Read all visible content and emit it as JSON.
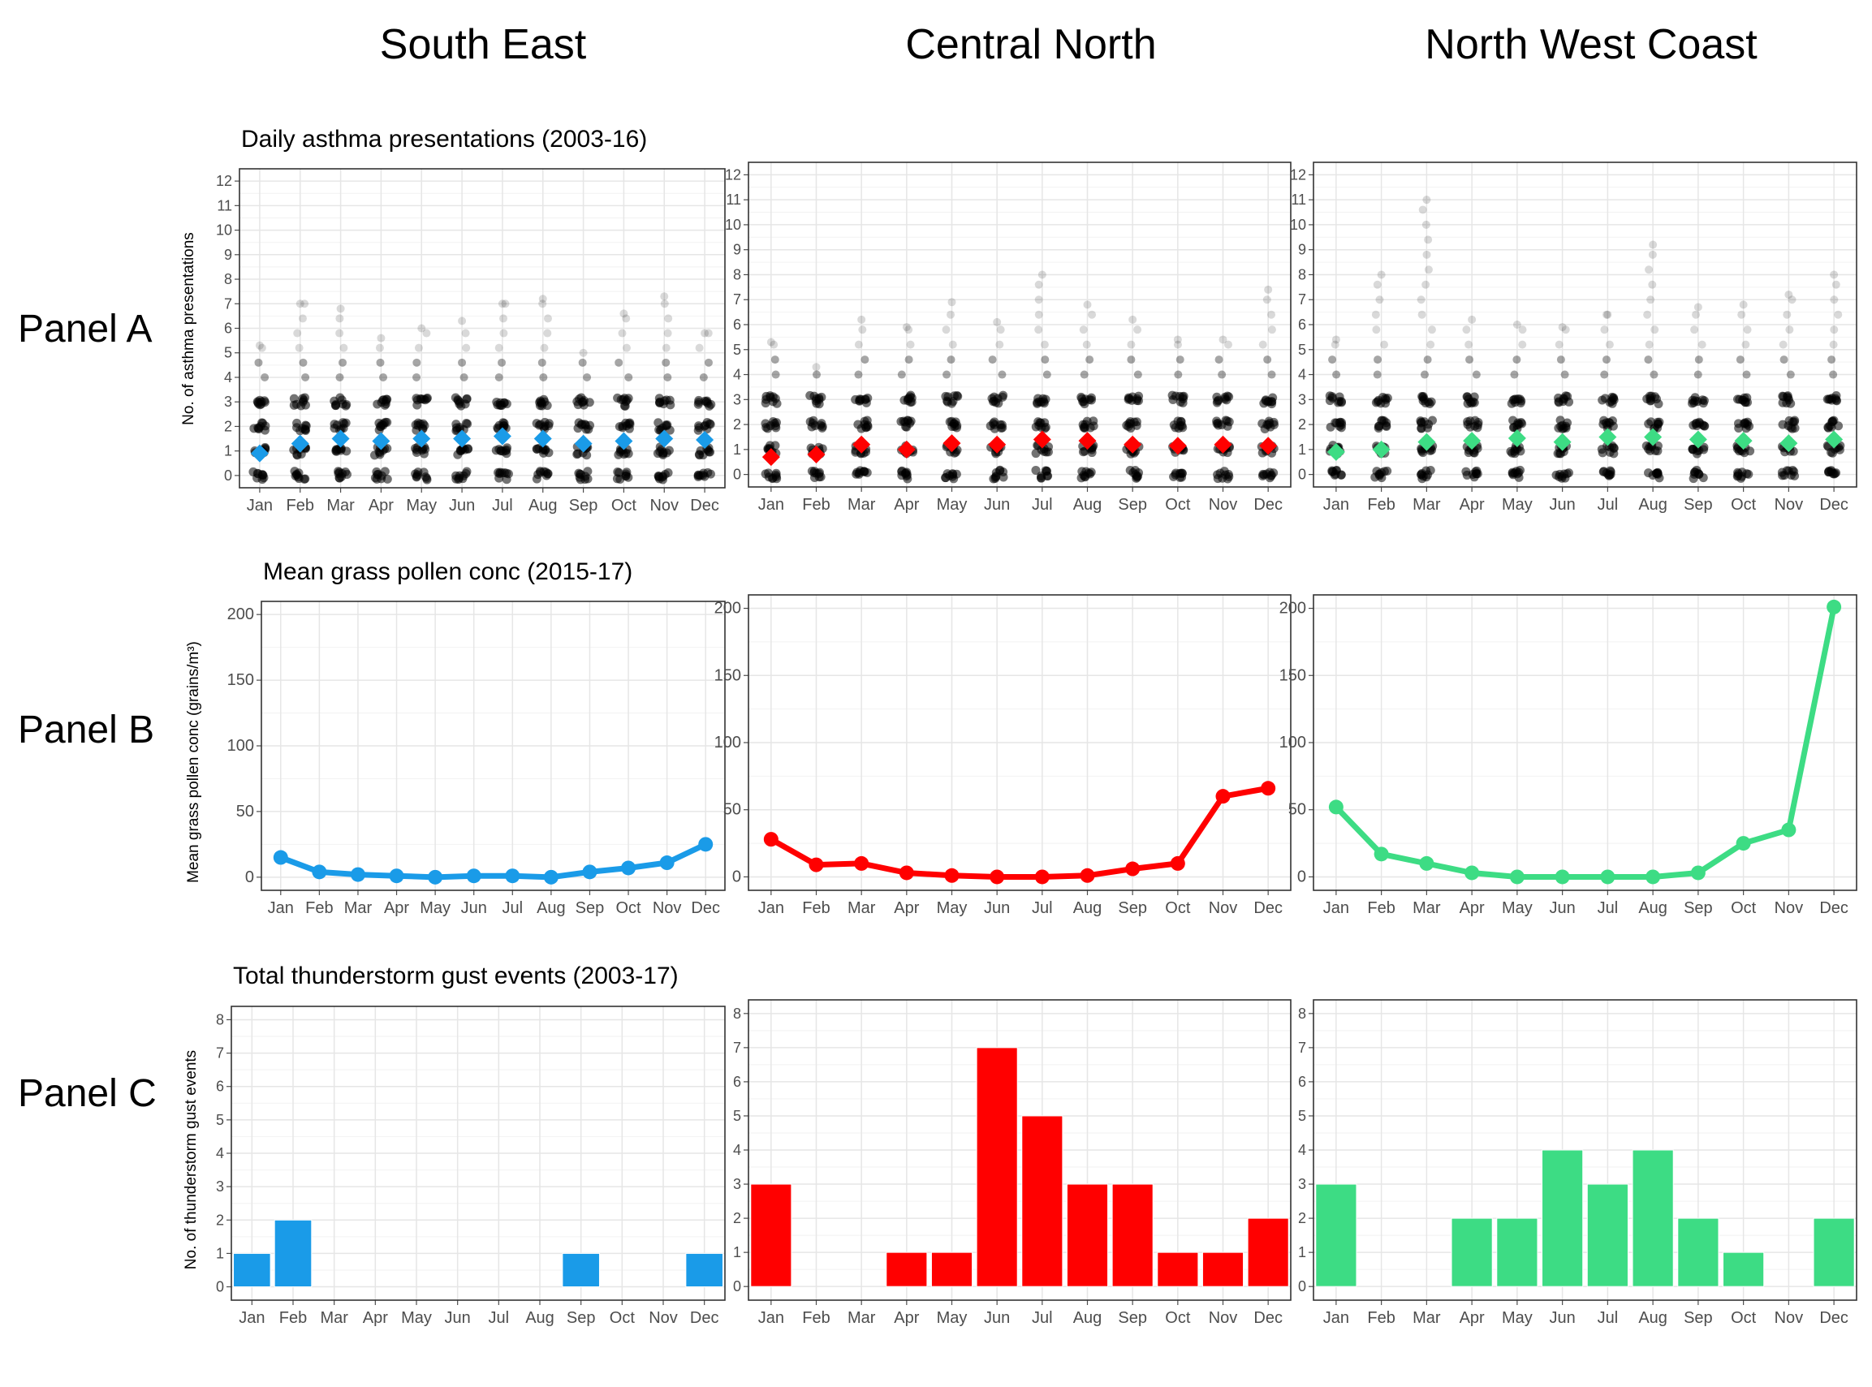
{
  "columns": [
    "South East",
    "Central North",
    "North West Coast"
  ],
  "panels": [
    "Panel A",
    "Panel B",
    "Panel C"
  ],
  "colors": {
    "South East": "#1a9be8",
    "Central North": "#ff0000",
    "North West Coast": "#3ddc84"
  },
  "chart_data": [
    {
      "panel": "A",
      "region": "South East",
      "type": "scatter",
      "title": "Daily asthma presentations (2003-16)",
      "xlabel": "",
      "ylabel": "No. of asthma presentations",
      "categories": [
        "Jan",
        "Feb",
        "Mar",
        "Apr",
        "May",
        "Jun",
        "Jul",
        "Aug",
        "Sep",
        "Oct",
        "Nov",
        "Dec"
      ],
      "ylim": [
        0,
        12
      ],
      "yticks": [
        0,
        1,
        2,
        3,
        4,
        5,
        6,
        7,
        8,
        9,
        10,
        11,
        12
      ],
      "means": [
        0.9,
        1.3,
        1.5,
        1.4,
        1.5,
        1.5,
        1.6,
        1.5,
        1.3,
        1.4,
        1.5,
        1.45
      ],
      "max_values": [
        5.3,
        7.0,
        6.8,
        5.6,
        6.0,
        6.3,
        7.0,
        7.2,
        5.0,
        6.6,
        7.3,
        5.8
      ],
      "grid": true
    },
    {
      "panel": "A",
      "region": "Central North",
      "type": "scatter",
      "title": "",
      "xlabel": "",
      "ylabel": "",
      "categories": [
        "Jan",
        "Feb",
        "Mar",
        "Apr",
        "May",
        "Jun",
        "Jul",
        "Aug",
        "Sep",
        "Oct",
        "Nov",
        "Dec"
      ],
      "ylim": [
        0,
        12
      ],
      "yticks": [
        0,
        1,
        2,
        3,
        4,
        5,
        6,
        7,
        8,
        9,
        10,
        11,
        12
      ],
      "means": [
        0.7,
        0.8,
        1.2,
        1.0,
        1.25,
        1.2,
        1.4,
        1.35,
        1.2,
        1.15,
        1.2,
        1.15
      ],
      "max_values": [
        5.3,
        4.3,
        6.2,
        5.9,
        6.9,
        6.1,
        8.0,
        6.8,
        6.2,
        5.4,
        5.4,
        7.4
      ],
      "grid": true
    },
    {
      "panel": "A",
      "region": "North West Coast",
      "type": "scatter",
      "title": "",
      "xlabel": "",
      "ylabel": "",
      "categories": [
        "Jan",
        "Feb",
        "Mar",
        "Apr",
        "May",
        "Jun",
        "Jul",
        "Aug",
        "Sep",
        "Oct",
        "Nov",
        "Dec"
      ],
      "ylim": [
        0,
        12
      ],
      "yticks": [
        0,
        1,
        2,
        3,
        4,
        5,
        6,
        7,
        8,
        9,
        10,
        11,
        12
      ],
      "means": [
        0.9,
        1.0,
        1.3,
        1.35,
        1.45,
        1.3,
        1.5,
        1.5,
        1.4,
        1.35,
        1.25,
        1.4
      ],
      "max_values": [
        5.4,
        8.0,
        11.0,
        6.2,
        6.0,
        5.9,
        6.4,
        9.2,
        6.7,
        6.8,
        7.2,
        8.0
      ],
      "grid": true
    },
    {
      "panel": "B",
      "region": "South East",
      "type": "line",
      "title": "Mean grass pollen conc (2015-17)",
      "xlabel": "",
      "ylabel": "Mean grass pollen conc (grains/m³)",
      "categories": [
        "Jan",
        "Feb",
        "Mar",
        "Apr",
        "May",
        "Jun",
        "Jul",
        "Aug",
        "Sep",
        "Oct",
        "Nov",
        "Dec"
      ],
      "values": [
        15,
        4,
        2,
        1,
        0,
        1,
        1,
        0,
        4,
        7,
        11,
        25
      ],
      "ylim": [
        -10,
        210
      ],
      "yticks": [
        0,
        50,
        100,
        150,
        200
      ],
      "grid": true
    },
    {
      "panel": "B",
      "region": "Central North",
      "type": "line",
      "title": "",
      "xlabel": "",
      "ylabel": "",
      "categories": [
        "Jan",
        "Feb",
        "Mar",
        "Apr",
        "May",
        "Jun",
        "Jul",
        "Aug",
        "Sep",
        "Oct",
        "Nov",
        "Dec"
      ],
      "values": [
        28,
        9,
        10,
        3,
        1,
        0,
        0,
        1,
        6,
        10,
        60,
        66
      ],
      "ylim": [
        -10,
        210
      ],
      "yticks": [
        0,
        50,
        100,
        150,
        200
      ],
      "grid": true
    },
    {
      "panel": "B",
      "region": "North West Coast",
      "type": "line",
      "title": "",
      "xlabel": "",
      "ylabel": "",
      "categories": [
        "Jan",
        "Feb",
        "Mar",
        "Apr",
        "May",
        "Jun",
        "Jul",
        "Aug",
        "Sep",
        "Oct",
        "Nov",
        "Dec"
      ],
      "values": [
        52,
        17,
        10,
        3,
        0,
        0,
        0,
        0,
        3,
        25,
        35,
        201
      ],
      "ylim": [
        -10,
        210
      ],
      "yticks": [
        0,
        50,
        100,
        150,
        200
      ],
      "grid": true
    },
    {
      "panel": "C",
      "region": "South East",
      "type": "bar",
      "title": "Total thunderstorm gust events (2003-17)",
      "xlabel": "",
      "ylabel": "No. of thunderstorm gust events",
      "categories": [
        "Jan",
        "Feb",
        "Mar",
        "Apr",
        "May",
        "Jun",
        "Jul",
        "Aug",
        "Sep",
        "Oct",
        "Nov",
        "Dec"
      ],
      "values": [
        1,
        2,
        0,
        0,
        0,
        0,
        0,
        0,
        1,
        0,
        0,
        1
      ],
      "ylim": [
        -0.4,
        8.4
      ],
      "yticks": [
        0,
        1,
        2,
        3,
        4,
        5,
        6,
        7,
        8
      ],
      "grid": true
    },
    {
      "panel": "C",
      "region": "Central North",
      "type": "bar",
      "title": "",
      "xlabel": "",
      "ylabel": "",
      "categories": [
        "Jan",
        "Feb",
        "Mar",
        "Apr",
        "May",
        "Jun",
        "Jul",
        "Aug",
        "Sep",
        "Oct",
        "Nov",
        "Dec"
      ],
      "values": [
        3,
        0,
        0,
        1,
        1,
        7,
        5,
        3,
        3,
        1,
        1,
        2
      ],
      "ylim": [
        -0.4,
        8.4
      ],
      "yticks": [
        0,
        1,
        2,
        3,
        4,
        5,
        6,
        7,
        8
      ],
      "grid": true
    },
    {
      "panel": "C",
      "region": "North West Coast",
      "type": "bar",
      "title": "",
      "xlabel": "",
      "ylabel": "",
      "categories": [
        "Jan",
        "Feb",
        "Mar",
        "Apr",
        "May",
        "Jun",
        "Jul",
        "Aug",
        "Sep",
        "Oct",
        "Nov",
        "Dec"
      ],
      "values": [
        3,
        0,
        0,
        2,
        2,
        4,
        3,
        4,
        2,
        1,
        0,
        2
      ],
      "ylim": [
        -0.4,
        8.4
      ],
      "yticks": [
        0,
        1,
        2,
        3,
        4,
        5,
        6,
        7,
        8
      ],
      "grid": true
    }
  ]
}
